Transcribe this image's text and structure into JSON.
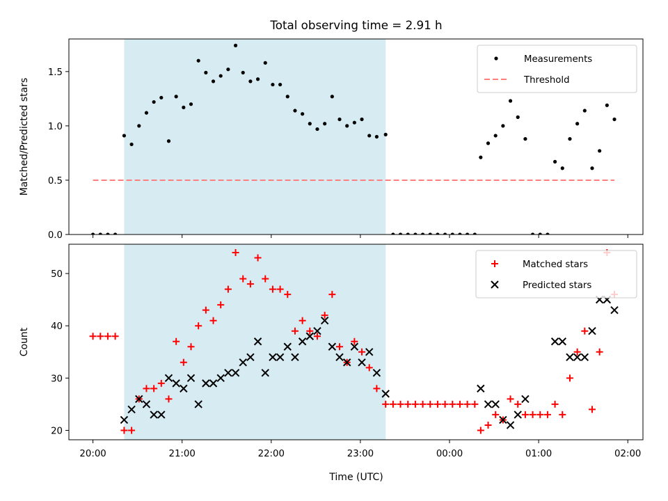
{
  "title": "Total observing time = 2.91 h",
  "xlabel": "Time (UTC)",
  "x_tick_labels": [
    "20:00",
    "21:00",
    "22:00",
    "23:00",
    "00:00",
    "01:00",
    "02:00"
  ],
  "colors": {
    "measurements": "#000000",
    "threshold": "#ff7f7f",
    "matched": "#ff0000",
    "predicted": "#000000",
    "shade": "#add8e6"
  },
  "chart_data": [
    {
      "type": "scatter",
      "ylabel": "Matched/Predicted stars",
      "ylim": [
        0,
        1.8
      ],
      "yticks": [
        0.0,
        0.5,
        1.0,
        1.5
      ],
      "y_tick_labels": [
        "0.0",
        "0.5",
        "1.0",
        "1.5"
      ],
      "xlim_hours": [
        19.73,
        26.17
      ],
      "shaded_span": [
        "20:21",
        "23:17"
      ],
      "legend_position": "top-right",
      "legend": [
        "Measurements",
        "Threshold"
      ],
      "threshold": {
        "name": "Threshold",
        "value": 0.5,
        "x_start": "20:00",
        "x_end": "01:51",
        "style": "dashed"
      },
      "series": [
        {
          "name": "Measurements",
          "points": [
            [
              "20:00",
              0.0
            ],
            [
              "20:05",
              0.0
            ],
            [
              "20:10",
              0.0
            ],
            [
              "20:15",
              0.0
            ],
            [
              "20:21",
              0.91
            ],
            [
              "20:26",
              0.83
            ],
            [
              "20:31",
              1.0
            ],
            [
              "20:36",
              1.12
            ],
            [
              "20:41",
              1.22
            ],
            [
              "20:46",
              1.26
            ],
            [
              "20:51",
              0.86
            ],
            [
              "20:56",
              1.27
            ],
            [
              "21:01",
              1.17
            ],
            [
              "21:06",
              1.2
            ],
            [
              "21:11",
              1.6
            ],
            [
              "21:16",
              1.49
            ],
            [
              "21:21",
              1.41
            ],
            [
              "21:26",
              1.46
            ],
            [
              "21:31",
              1.52
            ],
            [
              "21:36",
              1.74
            ],
            [
              "21:41",
              1.49
            ],
            [
              "21:46",
              1.41
            ],
            [
              "21:51",
              1.43
            ],
            [
              "21:56",
              1.58
            ],
            [
              "22:01",
              1.38
            ],
            [
              "22:06",
              1.38
            ],
            [
              "22:11",
              1.27
            ],
            [
              "22:16",
              1.14
            ],
            [
              "22:21",
              1.11
            ],
            [
              "22:26",
              1.02
            ],
            [
              "22:31",
              0.97
            ],
            [
              "22:36",
              1.02
            ],
            [
              "22:41",
              1.27
            ],
            [
              "22:46",
              1.06
            ],
            [
              "22:51",
              1.0
            ],
            [
              "22:56",
              1.03
            ],
            [
              "23:01",
              1.06
            ],
            [
              "23:06",
              0.91
            ],
            [
              "23:11",
              0.9
            ],
            [
              "23:17",
              0.92
            ],
            [
              "23:22",
              0.0
            ],
            [
              "23:27",
              0.0
            ],
            [
              "23:32",
              0.0
            ],
            [
              "23:37",
              0.0
            ],
            [
              "23:42",
              0.0
            ],
            [
              "23:47",
              0.0
            ],
            [
              "23:52",
              0.0
            ],
            [
              "23:57",
              0.0
            ],
            [
              "00:02",
              0.0
            ],
            [
              "00:07",
              0.0
            ],
            [
              "00:12",
              0.0
            ],
            [
              "00:17",
              0.0
            ],
            [
              "00:21",
              0.71
            ],
            [
              "00:26",
              0.84
            ],
            [
              "00:31",
              0.91
            ],
            [
              "00:36",
              1.0
            ],
            [
              "00:41",
              1.23
            ],
            [
              "00:46",
              1.08
            ],
            [
              "00:51",
              0.88
            ],
            [
              "00:56",
              0.0
            ],
            [
              "01:01",
              0.0
            ],
            [
              "01:06",
              0.0
            ],
            [
              "01:11",
              0.67
            ],
            [
              "01:16",
              0.61
            ],
            [
              "01:21",
              0.88
            ],
            [
              "01:26",
              1.02
            ],
            [
              "01:31",
              1.14
            ],
            [
              "01:36",
              0.61
            ],
            [
              "01:41",
              0.77
            ],
            [
              "01:46",
              1.19
            ],
            [
              "01:51",
              1.06
            ]
          ]
        }
      ]
    },
    {
      "type": "scatter",
      "ylabel": "Count",
      "ylim": [
        18.2,
        55.6
      ],
      "yticks": [
        20,
        30,
        40,
        50
      ],
      "y_tick_labels": [
        "20",
        "30",
        "40",
        "50"
      ],
      "xlim_hours": [
        19.73,
        26.17
      ],
      "shaded_span": [
        "20:21",
        "23:17"
      ],
      "legend_position": "top-right",
      "legend": [
        "Matched stars",
        "Predicted stars"
      ],
      "series": [
        {
          "name": "Matched stars",
          "marker": "plus",
          "points": [
            [
              "20:00",
              38
            ],
            [
              "20:05",
              38
            ],
            [
              "20:10",
              38
            ],
            [
              "20:15",
              38
            ],
            [
              "20:21",
              20
            ],
            [
              "20:26",
              20
            ],
            [
              "20:31",
              26
            ],
            [
              "20:36",
              28
            ],
            [
              "20:41",
              28
            ],
            [
              "20:46",
              29
            ],
            [
              "20:51",
              26
            ],
            [
              "20:56",
              37
            ],
            [
              "21:01",
              33
            ],
            [
              "21:06",
              36
            ],
            [
              "21:11",
              40
            ],
            [
              "21:16",
              43
            ],
            [
              "21:21",
              41
            ],
            [
              "21:26",
              44
            ],
            [
              "21:31",
              47
            ],
            [
              "21:36",
              54
            ],
            [
              "21:41",
              49
            ],
            [
              "21:46",
              48
            ],
            [
              "21:51",
              53
            ],
            [
              "21:56",
              49
            ],
            [
              "22:01",
              47
            ],
            [
              "22:06",
              47
            ],
            [
              "22:11",
              46
            ],
            [
              "22:16",
              39
            ],
            [
              "22:21",
              41
            ],
            [
              "22:26",
              39
            ],
            [
              "22:31",
              38
            ],
            [
              "22:36",
              42
            ],
            [
              "22:41",
              46
            ],
            [
              "22:46",
              36
            ],
            [
              "22:51",
              33
            ],
            [
              "22:56",
              37
            ],
            [
              "23:01",
              35
            ],
            [
              "23:06",
              32
            ],
            [
              "23:11",
              28
            ],
            [
              "23:17",
              25
            ],
            [
              "23:22",
              25
            ],
            [
              "23:27",
              25
            ],
            [
              "23:32",
              25
            ],
            [
              "23:37",
              25
            ],
            [
              "23:42",
              25
            ],
            [
              "23:47",
              25
            ],
            [
              "23:52",
              25
            ],
            [
              "23:57",
              25
            ],
            [
              "00:02",
              25
            ],
            [
              "00:07",
              25
            ],
            [
              "00:12",
              25
            ],
            [
              "00:17",
              25
            ],
            [
              "00:21",
              20
            ],
            [
              "00:26",
              21
            ],
            [
              "00:31",
              23
            ],
            [
              "00:36",
              22
            ],
            [
              "00:41",
              26
            ],
            [
              "00:46",
              25
            ],
            [
              "00:51",
              23
            ],
            [
              "00:56",
              23
            ],
            [
              "01:01",
              23
            ],
            [
              "01:06",
              23
            ],
            [
              "01:11",
              25
            ],
            [
              "01:16",
              23
            ],
            [
              "01:21",
              30
            ],
            [
              "01:26",
              35
            ],
            [
              "01:31",
              39
            ],
            [
              "01:36",
              24
            ],
            [
              "01:41",
              35
            ],
            [
              "01:46",
              54
            ],
            [
              "01:51",
              46
            ]
          ]
        },
        {
          "name": "Predicted stars",
          "marker": "x",
          "points": [
            [
              "20:21",
              22
            ],
            [
              "20:26",
              24
            ],
            [
              "20:31",
              26
            ],
            [
              "20:36",
              25
            ],
            [
              "20:41",
              23
            ],
            [
              "20:46",
              23
            ],
            [
              "20:51",
              30
            ],
            [
              "20:56",
              29
            ],
            [
              "21:01",
              28
            ],
            [
              "21:06",
              30
            ],
            [
              "21:11",
              25
            ],
            [
              "21:16",
              29
            ],
            [
              "21:21",
              29
            ],
            [
              "21:26",
              30
            ],
            [
              "21:31",
              31
            ],
            [
              "21:36",
              31
            ],
            [
              "21:41",
              33
            ],
            [
              "21:46",
              34
            ],
            [
              "21:51",
              37
            ],
            [
              "21:56",
              31
            ],
            [
              "22:01",
              34
            ],
            [
              "22:06",
              34
            ],
            [
              "22:11",
              36
            ],
            [
              "22:16",
              34
            ],
            [
              "22:21",
              37
            ],
            [
              "22:26",
              38
            ],
            [
              "22:31",
              39
            ],
            [
              "22:36",
              41
            ],
            [
              "22:41",
              36
            ],
            [
              "22:46",
              34
            ],
            [
              "22:51",
              33
            ],
            [
              "22:56",
              36
            ],
            [
              "23:01",
              33
            ],
            [
              "23:06",
              35
            ],
            [
              "23:11",
              31
            ],
            [
              "23:17",
              27
            ],
            [
              "00:21",
              28
            ],
            [
              "00:26",
              25
            ],
            [
              "00:31",
              25
            ],
            [
              "00:36",
              22
            ],
            [
              "00:41",
              21
            ],
            [
              "00:46",
              23
            ],
            [
              "00:51",
              26
            ],
            [
              "01:11",
              37
            ],
            [
              "01:16",
              37
            ],
            [
              "01:21",
              34
            ],
            [
              "01:26",
              34
            ],
            [
              "01:31",
              34
            ],
            [
              "01:36",
              39
            ],
            [
              "01:41",
              45
            ],
            [
              "01:46",
              45
            ],
            [
              "01:51",
              43
            ]
          ]
        }
      ]
    }
  ]
}
